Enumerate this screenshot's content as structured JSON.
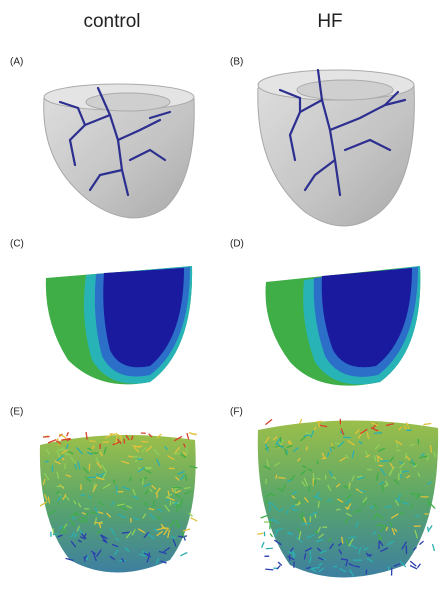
{
  "headers": [
    "control",
    "HF"
  ],
  "panel_labels": [
    "(A)",
    "(B)",
    "(C)",
    "(D)",
    "(E)",
    "(F)"
  ]
}
